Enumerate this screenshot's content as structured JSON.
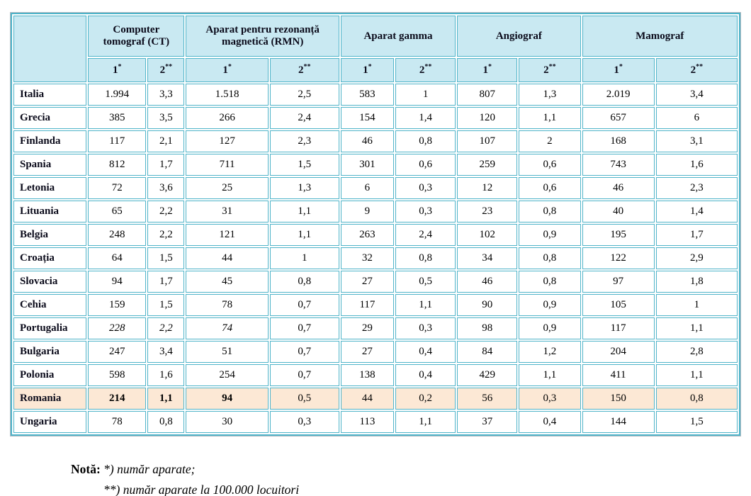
{
  "colors": {
    "header_bg": "#c9e9f2",
    "border_teal": "#4fb4c9",
    "highlight_row_bg": "#fce8d5",
    "text": "#000000"
  },
  "table": {
    "column_groups": [
      {
        "label": "Computer tomograf (CT)"
      },
      {
        "label": "Aparat pentru rezonanță magnetică (RMN)"
      },
      {
        "label": "Aparat gamma"
      },
      {
        "label": "Angiograf"
      },
      {
        "label": "Mamograf"
      }
    ],
    "sub_columns": [
      {
        "base": "1",
        "stars": "*"
      },
      {
        "base": "2",
        "stars": "**"
      }
    ],
    "rows": [
      {
        "country": "Italia",
        "values": [
          "1.994",
          "3,3",
          "1.518",
          "2,5",
          "583",
          "1",
          "807",
          "1,3",
          "2.019",
          "3,4"
        ]
      },
      {
        "country": "Grecia",
        "values": [
          "385",
          "3,5",
          "266",
          "2,4",
          "154",
          "1,4",
          "120",
          "1,1",
          "657",
          "6"
        ]
      },
      {
        "country": "Finlanda",
        "values": [
          "117",
          "2,1",
          "127",
          "2,3",
          "46",
          "0,8",
          "107",
          "2",
          "168",
          "3,1"
        ]
      },
      {
        "country": "Spania",
        "values": [
          "812",
          "1,7",
          "711",
          "1,5",
          "301",
          "0,6",
          "259",
          "0,6",
          "743",
          "1,6"
        ]
      },
      {
        "country": "Letonia",
        "values": [
          "72",
          "3,6",
          "25",
          "1,3",
          "6",
          "0,3",
          "12",
          "0,6",
          "46",
          "2,3"
        ]
      },
      {
        "country": "Lituania",
        "values": [
          "65",
          "2,2",
          "31",
          "1,1",
          "9",
          "0,3",
          "23",
          "0,8",
          "40",
          "1,4"
        ]
      },
      {
        "country": "Belgia",
        "values": [
          "248",
          "2,2",
          "121",
          "1,1",
          "263",
          "2,4",
          "102",
          "0,9",
          "195",
          "1,7"
        ]
      },
      {
        "country": "Croația",
        "values": [
          "64",
          "1,5",
          "44",
          "1",
          "32",
          "0,8",
          "34",
          "0,8",
          "122",
          "2,9"
        ]
      },
      {
        "country": "Slovacia",
        "values": [
          "94",
          "1,7",
          "45",
          "0,8",
          "27",
          "0,5",
          "46",
          "0,8",
          "97",
          "1,8"
        ]
      },
      {
        "country": "Cehia",
        "values": [
          "159",
          "1,5",
          "78",
          "0,7",
          "117",
          "1,1",
          "90",
          "0,9",
          "105",
          "1"
        ]
      },
      {
        "country": "Portugalia",
        "values": [
          "228",
          "2,2",
          "74",
          "0,7",
          "29",
          "0,3",
          "98",
          "0,9",
          "117",
          "1,1"
        ],
        "italic_cells": [
          0,
          1,
          2
        ]
      },
      {
        "country": "Bulgaria",
        "values": [
          "247",
          "3,4",
          "51",
          "0,7",
          "27",
          "0,4",
          "84",
          "1,2",
          "204",
          "2,8"
        ]
      },
      {
        "country": "Polonia",
        "values": [
          "598",
          "1,6",
          "254",
          "0,7",
          "138",
          "0,4",
          "429",
          "1,1",
          "411",
          "1,1"
        ]
      },
      {
        "country": "Romania",
        "values": [
          "214",
          "1,1",
          "94",
          "0,5",
          "44",
          "0,2",
          "56",
          "0,3",
          "150",
          "0,8"
        ],
        "highlight": true,
        "bold_cells": [
          0,
          1,
          2
        ]
      },
      {
        "country": "Ungaria",
        "values": [
          "78",
          "0,8",
          "30",
          "0,3",
          "113",
          "1,1",
          "37",
          "0,4",
          "144",
          "1,5"
        ]
      }
    ]
  },
  "note": {
    "label": "Notă:",
    "line1": "*) număr aparate;",
    "line2": "**) număr aparate la 100.000 locuitori"
  }
}
